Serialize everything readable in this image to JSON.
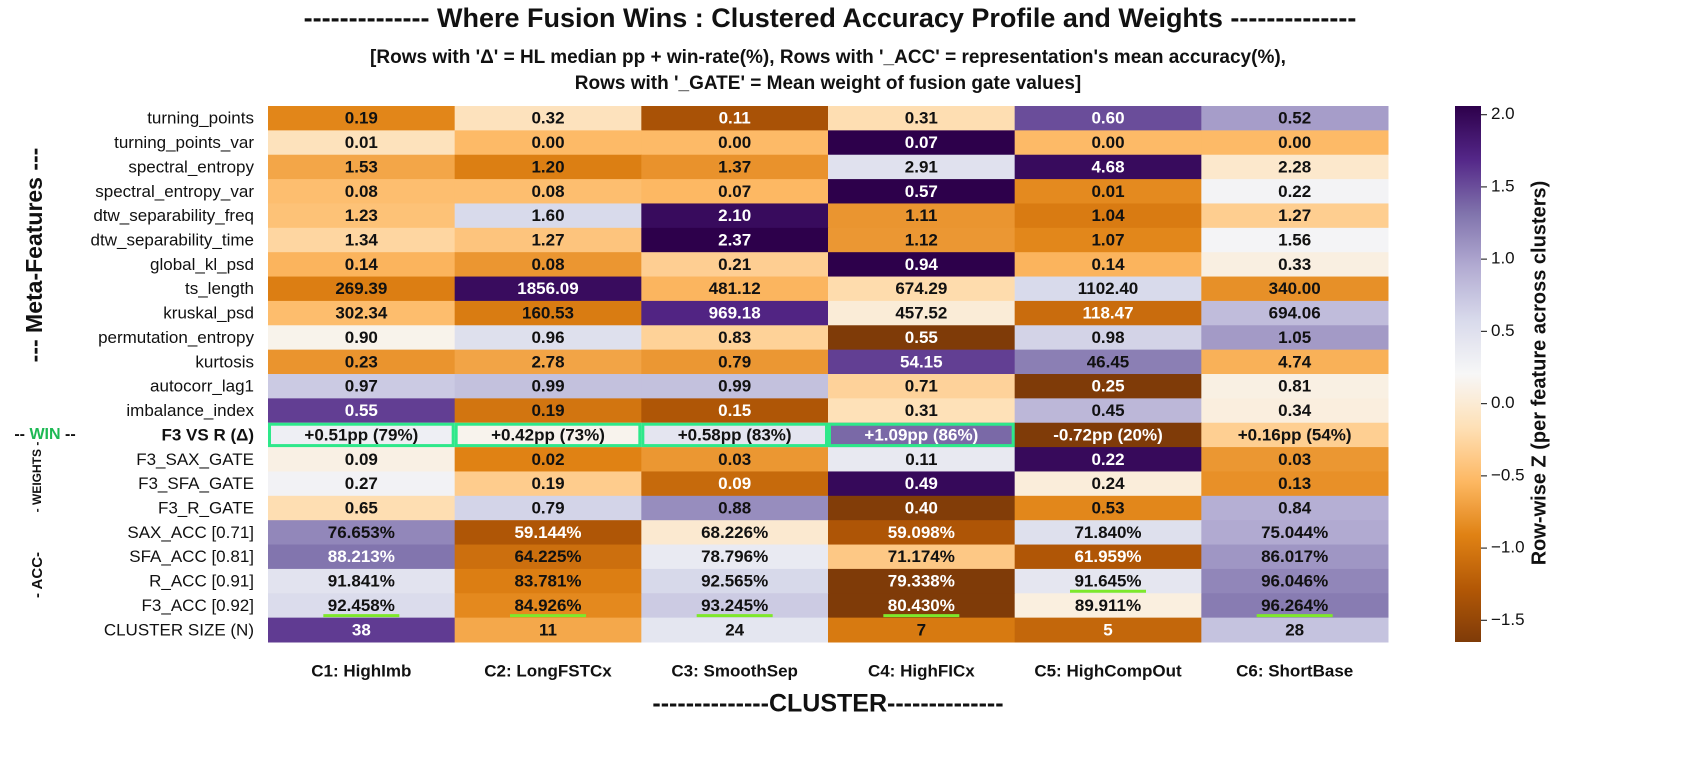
{
  "chart_data": {
    "type": "heatmap",
    "title": "-------------- Where Fusion Wins : Clustered Accuracy Profile and Weights --------------",
    "subtitle": [
      "[Rows with 'Δ' = HL median pp + win-rate(%), Rows with '_ACC' = representation's mean accuracy(%),",
      "Rows with '_GATE' = Mean weight of fusion gate values]"
    ],
    "xlabel": "--------------CLUSTER--------------",
    "columns": [
      "C1: HighImb",
      "C2: LongFSTCx",
      "C3: SmoothSep",
      "C4: HighFICx",
      "C5: HighCompOut",
      "C6: ShortBase"
    ],
    "rows": [
      "turning_points",
      "turning_points_var",
      "spectral_entropy",
      "spectral_entropy_var",
      "dtw_separability_freq",
      "dtw_separability_time",
      "global_kl_psd",
      "ts_length",
      "kruskal_psd",
      "permutation_entropy",
      "kurtosis",
      "autocorr_lag1",
      "imbalance_index",
      "F3 VS R (Δ)",
      "F3_SAX_GATE",
      "F3_SFA_GATE",
      "F3_R_GATE",
      "SAX_ACC [0.71]",
      "SFA_ACC [0.81]",
      "R_ACC [0.91]",
      "F3_ACC [0.92]",
      "CLUSTER SIZE (N)"
    ],
    "values": [
      [
        0.19,
        0.32,
        0.11,
        0.31,
        0.6,
        0.52
      ],
      [
        0.01,
        0.0,
        0.0,
        0.07,
        0.0,
        0.0
      ],
      [
        1.53,
        1.2,
        1.37,
        2.91,
        4.68,
        2.28
      ],
      [
        0.08,
        0.08,
        0.07,
        0.57,
        0.01,
        0.22
      ],
      [
        1.23,
        1.6,
        2.1,
        1.11,
        1.04,
        1.27
      ],
      [
        1.34,
        1.27,
        2.37,
        1.12,
        1.07,
        1.56
      ],
      [
        0.14,
        0.08,
        0.21,
        0.94,
        0.14,
        0.33
      ],
      [
        269.39,
        1856.09,
        481.12,
        674.29,
        1102.4,
        340.0
      ],
      [
        302.34,
        160.53,
        969.18,
        457.52,
        118.47,
        694.06
      ],
      [
        0.9,
        0.96,
        0.83,
        0.55,
        0.98,
        1.05
      ],
      [
        0.23,
        2.78,
        0.79,
        54.15,
        46.45,
        4.74
      ],
      [
        0.97,
        0.99,
        0.99,
        0.71,
        0.25,
        0.81
      ],
      [
        0.55,
        0.19,
        0.15,
        0.31,
        0.45,
        0.34
      ],
      [
        0.51,
        0.42,
        0.58,
        1.09,
        -0.72,
        0.16
      ],
      [
        0.09,
        0.02,
        0.03,
        0.11,
        0.22,
        0.03
      ],
      [
        0.27,
        0.19,
        0.09,
        0.49,
        0.24,
        0.13
      ],
      [
        0.65,
        0.79,
        0.88,
        0.4,
        0.53,
        0.84
      ],
      [
        76.653,
        59.144,
        68.226,
        59.098,
        71.84,
        75.044
      ],
      [
        88.213,
        64.225,
        78.796,
        71.174,
        61.959,
        86.017
      ],
      [
        91.841,
        83.781,
        92.565,
        79.338,
        91.645,
        96.046
      ],
      [
        92.458,
        84.926,
        93.245,
        80.43,
        89.911,
        96.264
      ],
      [
        38,
        11,
        24,
        7,
        5,
        28
      ]
    ],
    "value_labels": [
      [
        "0.19",
        "0.32",
        "0.11",
        "0.31",
        "0.60",
        "0.52"
      ],
      [
        "0.01",
        "0.00",
        "0.00",
        "0.07",
        "0.00",
        "0.00"
      ],
      [
        "1.53",
        "1.20",
        "1.37",
        "2.91",
        "4.68",
        "2.28"
      ],
      [
        "0.08",
        "0.08",
        "0.07",
        "0.57",
        "0.01",
        "0.22"
      ],
      [
        "1.23",
        "1.60",
        "2.10",
        "1.11",
        "1.04",
        "1.27"
      ],
      [
        "1.34",
        "1.27",
        "2.37",
        "1.12",
        "1.07",
        "1.56"
      ],
      [
        "0.14",
        "0.08",
        "0.21",
        "0.94",
        "0.14",
        "0.33"
      ],
      [
        "269.39",
        "1856.09",
        "481.12",
        "674.29",
        "1102.40",
        "340.00"
      ],
      [
        "302.34",
        "160.53",
        "969.18",
        "457.52",
        "118.47",
        "694.06"
      ],
      [
        "0.90",
        "0.96",
        "0.83",
        "0.55",
        "0.98",
        "1.05"
      ],
      [
        "0.23",
        "2.78",
        "0.79",
        "54.15",
        "46.45",
        "4.74"
      ],
      [
        "0.97",
        "0.99",
        "0.99",
        "0.71",
        "0.25",
        "0.81"
      ],
      [
        "0.55",
        "0.19",
        "0.15",
        "0.31",
        "0.45",
        "0.34"
      ],
      [
        "+0.51pp (79%)",
        "+0.42pp (73%)",
        "+0.58pp (83%)",
        "+1.09pp (86%)",
        "-0.72pp (20%)",
        "+0.16pp (54%)"
      ],
      [
        "0.09",
        "0.02",
        "0.03",
        "0.11",
        "0.22",
        "0.03"
      ],
      [
        "0.27",
        "0.19",
        "0.09",
        "0.49",
        "0.24",
        "0.13"
      ],
      [
        "0.65",
        "0.79",
        "0.88",
        "0.40",
        "0.53",
        "0.84"
      ],
      [
        "76.653%",
        "59.144%",
        "68.226%",
        "59.098%",
        "71.840%",
        "75.044%"
      ],
      [
        "88.213%",
        "64.225%",
        "78.796%",
        "71.174%",
        "61.959%",
        "86.017%"
      ],
      [
        "91.841%",
        "83.781%",
        "92.565%",
        "79.338%",
        "91.645%",
        "96.046%"
      ],
      [
        "92.458%",
        "84.926%",
        "93.245%",
        "80.430%",
        "89.911%",
        "96.264%"
      ],
      [
        "38",
        "11",
        "24",
        "7",
        "5",
        "28"
      ]
    ],
    "cmap": [
      "#7f3b08",
      "#b35806",
      "#e08214",
      "#fdb863",
      "#fee0b6",
      "#f7f7f7",
      "#d8daeb",
      "#b2abd2",
      "#8073ac",
      "#542788",
      "#2d004b"
    ],
    "colorbar_label": "Row-wise Z (per feature across clusters)",
    "colorbar_lim": [
      -1.65,
      2.06
    ],
    "colorbar_ticks": [
      {
        "value": -1.5,
        "label": "−1.5"
      },
      {
        "value": -1.0,
        "label": "−1.0"
      },
      {
        "value": -0.5,
        "label": "−0.5"
      },
      {
        "value": 0,
        "label": "0.0"
      },
      {
        "value": 0.5,
        "label": "0.5"
      },
      {
        "value": 1.0,
        "label": "1.0"
      },
      {
        "value": 1.5,
        "label": "1.5"
      },
      {
        "value": 2.0,
        "label": "2.0"
      }
    ],
    "group_meta": "--- Meta-Features ---",
    "group_win": [
      "-- ",
      "WIN",
      " --"
    ],
    "group_weights": "- WEIGHTS -",
    "group_acc": "- ACC-",
    "boxed_cells": [
      [
        13,
        0
      ],
      [
        13,
        1
      ],
      [
        13,
        2
      ],
      [
        13,
        3
      ]
    ],
    "box_color": "#2ee88a",
    "underlined_cells": [
      [
        20,
        0
      ],
      [
        20,
        1
      ],
      [
        20,
        2
      ],
      [
        20,
        3
      ],
      [
        19,
        4
      ],
      [
        20,
        5
      ]
    ],
    "underline_color": "#7ee82b"
  }
}
